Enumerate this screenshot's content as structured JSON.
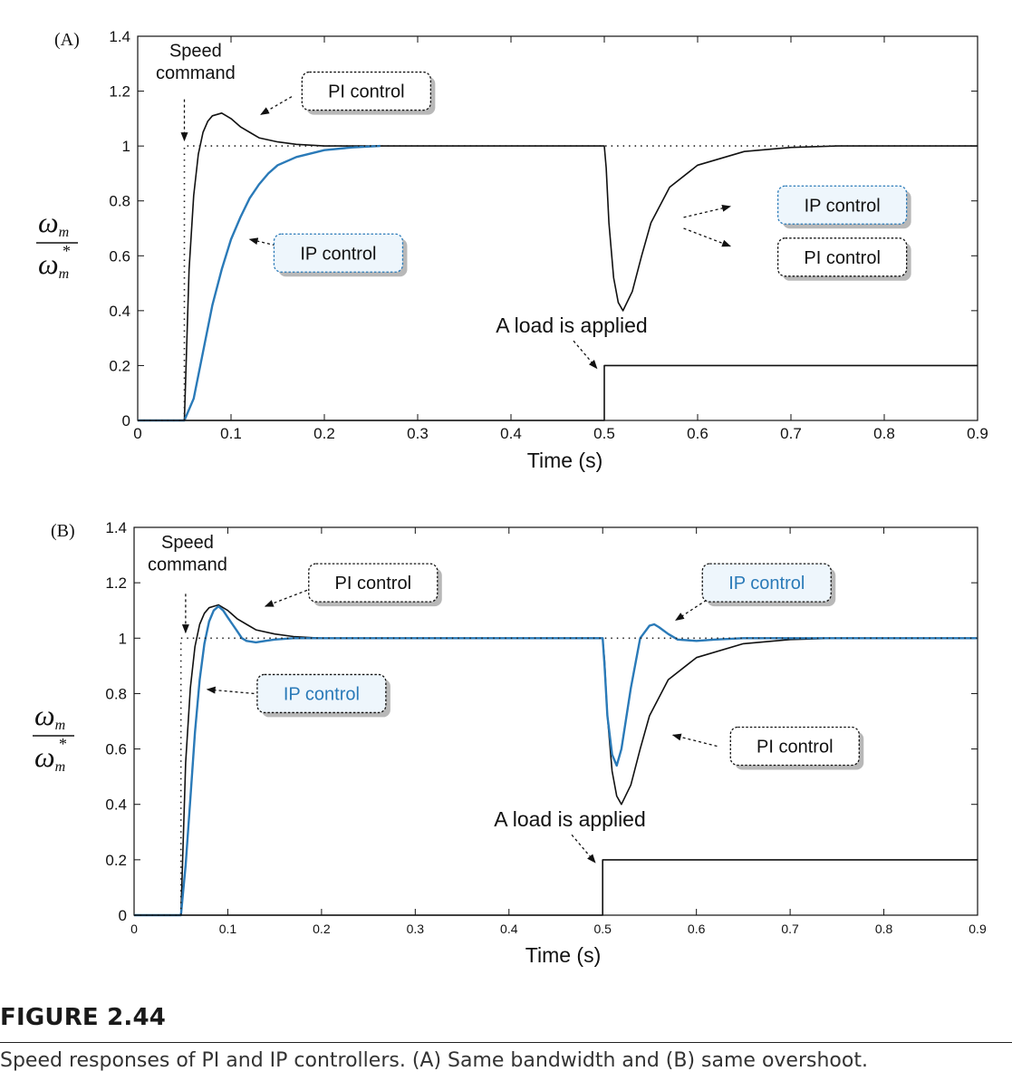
{
  "colors": {
    "pi": "#111111",
    "ip": "#2a7ab8",
    "command": "#222222",
    "ip_box_fill": "#eef6fc",
    "shadow": "#b8b8b8"
  },
  "figure": {
    "number": "FIGURE 2.44",
    "caption": "Speed responses of PI and IP controllers. (A) Same bandwidth and (B) same overshoot."
  },
  "chart_data": [
    {
      "panel_label": "(A)",
      "type": "line",
      "xlabel": "Time (s)",
      "ylabel": "ω_m / ω_m*",
      "xlim": [
        0,
        0.9
      ],
      "ylim": [
        0,
        1.4
      ],
      "xticks": [
        0,
        0.1,
        0.2,
        0.3,
        0.4,
        0.5,
        0.6,
        0.7,
        0.8,
        0.9
      ],
      "yticks": [
        0,
        0.2,
        0.4,
        0.6,
        0.8,
        1,
        1.2,
        1.4
      ],
      "grid": false,
      "series": [
        {
          "name": "PI control",
          "key": "pi",
          "x": [
            0,
            0.05,
            0.055,
            0.06,
            0.065,
            0.07,
            0.075,
            0.08,
            0.085,
            0.09,
            0.1,
            0.11,
            0.12,
            0.13,
            0.15,
            0.17,
            0.2,
            0.25,
            0.3,
            0.4,
            0.5,
            0.502,
            0.505,
            0.51,
            0.515,
            0.52,
            0.53,
            0.54,
            0.55,
            0.57,
            0.6,
            0.65,
            0.7,
            0.75,
            0.9
          ],
          "y": [
            0,
            0,
            0.55,
            0.82,
            0.97,
            1.05,
            1.09,
            1.11,
            1.115,
            1.12,
            1.1,
            1.07,
            1.05,
            1.03,
            1.015,
            1.006,
            1.0,
            1.0,
            1.0,
            1.0,
            1.0,
            0.92,
            0.72,
            0.52,
            0.43,
            0.4,
            0.47,
            0.6,
            0.72,
            0.85,
            0.93,
            0.98,
            0.995,
            1.0,
            1.0
          ]
        },
        {
          "name": "IP control",
          "key": "ip",
          "x": [
            0,
            0.05,
            0.06,
            0.07,
            0.08,
            0.09,
            0.1,
            0.11,
            0.12,
            0.13,
            0.14,
            0.15,
            0.17,
            0.2,
            0.23,
            0.26
          ],
          "y": [
            0,
            0,
            0.08,
            0.25,
            0.42,
            0.55,
            0.66,
            0.74,
            0.81,
            0.86,
            0.9,
            0.93,
            0.96,
            0.985,
            0.995,
            1.0
          ]
        },
        {
          "name": "Speed command",
          "key": "command",
          "x": [
            0,
            0.05,
            0.05,
            0.9
          ],
          "y": [
            0,
            0,
            1,
            1
          ]
        },
        {
          "name": "Load",
          "key": "load",
          "x": [
            0,
            0.5,
            0.5,
            0.9
          ],
          "y": [
            0,
            0,
            0.2,
            0.2
          ]
        }
      ],
      "annotations": [
        {
          "text_lines": [
            "Speed",
            "command"
          ],
          "style": "plain",
          "text_x": 0.062,
          "text_y1": 1.325,
          "text_y2": 1.245,
          "arrow_from": [
            0.05,
            1.17
          ],
          "arrow_to": [
            0.05,
            1.02
          ]
        },
        {
          "text": "PI control",
          "style": "box",
          "color_key": "pi",
          "cx": 0.245,
          "cy": 1.2,
          "arrow_from": [
            0.165,
            1.18
          ],
          "arrow_to": [
            0.132,
            1.115
          ]
        },
        {
          "text": "IP control",
          "style": "box-blue",
          "color_key": "pi",
          "cx": 0.215,
          "cy": 0.61,
          "arrow_from": [
            0.17,
            0.62
          ],
          "arrow_to": [
            0.12,
            0.66
          ]
        },
        {
          "text": "IP control",
          "style": "box-blue",
          "color_key": "pi",
          "cx": 0.755,
          "cy": 0.785,
          "arrow_from": [
            0.585,
            0.74
          ],
          "arrow_to": [
            0.635,
            0.78
          ]
        },
        {
          "text": "PI control",
          "style": "box",
          "color_key": "pi",
          "cx": 0.755,
          "cy": 0.595,
          "arrow_from": [
            0.585,
            0.7
          ],
          "arrow_to": [
            0.635,
            0.635
          ]
        },
        {
          "text": "A load is applied",
          "style": "plain",
          "text_x": 0.465,
          "text_y": 0.32,
          "arrow_from": [
            0.467,
            0.29
          ],
          "arrow_to": [
            0.492,
            0.19
          ]
        }
      ]
    },
    {
      "panel_label": "(B)",
      "type": "line",
      "xlabel": "Time (s)",
      "ylabel": "ω_m / ω_m*",
      "xlim": [
        0,
        0.9
      ],
      "ylim": [
        0,
        1.4
      ],
      "xticks": [
        0,
        0.1,
        0.2,
        0.3,
        0.4,
        0.5,
        0.6,
        0.7,
        0.8,
        0.9
      ],
      "yticks": [
        0,
        0.2,
        0.4,
        0.6,
        0.8,
        1,
        1.2,
        1.4
      ],
      "grid": false,
      "series": [
        {
          "name": "PI control",
          "key": "pi",
          "x": [
            0,
            0.05,
            0.055,
            0.06,
            0.065,
            0.07,
            0.075,
            0.08,
            0.085,
            0.09,
            0.1,
            0.11,
            0.12,
            0.13,
            0.15,
            0.17,
            0.2,
            0.25,
            0.3,
            0.4,
            0.5,
            0.502,
            0.505,
            0.51,
            0.515,
            0.52,
            0.53,
            0.54,
            0.55,
            0.57,
            0.6,
            0.65,
            0.7,
            0.75,
            0.9
          ],
          "y": [
            0,
            0,
            0.55,
            0.82,
            0.97,
            1.05,
            1.09,
            1.11,
            1.115,
            1.12,
            1.1,
            1.07,
            1.05,
            1.03,
            1.015,
            1.006,
            1.0,
            1.0,
            1.0,
            1.0,
            1.0,
            0.92,
            0.72,
            0.52,
            0.43,
            0.4,
            0.47,
            0.6,
            0.72,
            0.85,
            0.93,
            0.98,
            0.995,
            1.0,
            1.0
          ]
        },
        {
          "name": "IP control",
          "key": "ip",
          "x": [
            0,
            0.05,
            0.055,
            0.06,
            0.065,
            0.07,
            0.075,
            0.08,
            0.085,
            0.09,
            0.095,
            0.1,
            0.105,
            0.11,
            0.115,
            0.12,
            0.13,
            0.14,
            0.15,
            0.17,
            0.2,
            0.28,
            0.43,
            0.5,
            0.502,
            0.505,
            0.51,
            0.515,
            0.52,
            0.53,
            0.54,
            0.55,
            0.555,
            0.56,
            0.57,
            0.58,
            0.6,
            0.62,
            0.65,
            0.7,
            0.9
          ],
          "y": [
            0,
            0,
            0.18,
            0.42,
            0.66,
            0.85,
            0.98,
            1.06,
            1.1,
            1.115,
            1.1,
            1.075,
            1.05,
            1.025,
            1.0,
            0.99,
            0.985,
            0.99,
            0.995,
            1.0,
            1.0,
            1.0,
            1.0,
            1.0,
            0.9,
            0.72,
            0.58,
            0.54,
            0.6,
            0.82,
            1.0,
            1.045,
            1.05,
            1.04,
            1.015,
            0.995,
            0.99,
            0.995,
            1.0,
            1.0,
            1.0
          ]
        },
        {
          "name": "Speed command",
          "key": "command",
          "x": [
            0,
            0.05,
            0.05,
            0.9
          ],
          "y": [
            0,
            0,
            1,
            1
          ]
        },
        {
          "name": "Load",
          "key": "load",
          "x": [
            0,
            0.5,
            0.5,
            0.9
          ],
          "y": [
            0,
            0,
            0.2,
            0.2
          ]
        }
      ],
      "annotations": [
        {
          "text_lines": [
            "Speed",
            "command"
          ],
          "style": "plain",
          "text_x": 0.057,
          "text_y1": 1.325,
          "text_y2": 1.245,
          "arrow_from": [
            0.055,
            1.16
          ],
          "arrow_to": [
            0.055,
            1.02
          ]
        },
        {
          "text": "PI control",
          "style": "box",
          "color_key": "pi",
          "cx": 0.255,
          "cy": 1.2,
          "arrow_from": [
            0.19,
            1.18
          ],
          "arrow_to": [
            0.14,
            1.115
          ]
        },
        {
          "text": "IP control",
          "style": "box",
          "color_key": "ip",
          "cx": 0.675,
          "cy": 1.2,
          "arrow_from": [
            0.63,
            1.18
          ],
          "arrow_to": [
            0.578,
            1.065
          ]
        },
        {
          "text": "IP control",
          "style": "box",
          "color_key": "ip",
          "cx": 0.2,
          "cy": 0.8,
          "arrow_from": [
            0.128,
            0.8
          ],
          "arrow_to": [
            0.078,
            0.815
          ]
        },
        {
          "text": "PI control",
          "style": "box",
          "color_key": "pi",
          "cx": 0.705,
          "cy": 0.61,
          "arrow_from": [
            0.622,
            0.61
          ],
          "arrow_to": [
            0.575,
            0.65
          ]
        },
        {
          "text": "A load is applied",
          "style": "plain",
          "text_x": 0.465,
          "text_y": 0.32,
          "arrow_from": [
            0.467,
            0.29
          ],
          "arrow_to": [
            0.492,
            0.19
          ]
        }
      ]
    }
  ]
}
